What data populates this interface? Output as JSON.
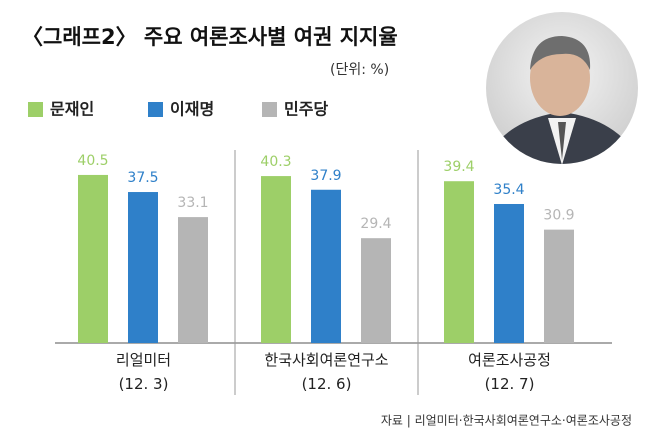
{
  "chart_data": {
    "type": "bar",
    "title": "〈그래프2〉 주요 여론조사별 여권 지지율",
    "subtitle": "(단위: %)",
    "source": "자료 | 리얼미터·한국사회여론연구소·여론조사공정",
    "categories": [
      "리얼미터\n(12. 3)",
      "한국사회여론연구소\n(12. 6)",
      "여론조사공정\n(12. 7)"
    ],
    "series": [
      {
        "name": "문재인",
        "color": "#9dcf68",
        "values": [
          40.5,
          40.3,
          39.4
        ]
      },
      {
        "name": "이재명",
        "color": "#2f80c9",
        "values": [
          37.5,
          37.9,
          35.4
        ]
      },
      {
        "name": "민주당",
        "color": "#b5b5b5",
        "values": [
          33.1,
          29.4,
          30.9
        ]
      }
    ],
    "ylim": [
      11,
      44
    ]
  }
}
